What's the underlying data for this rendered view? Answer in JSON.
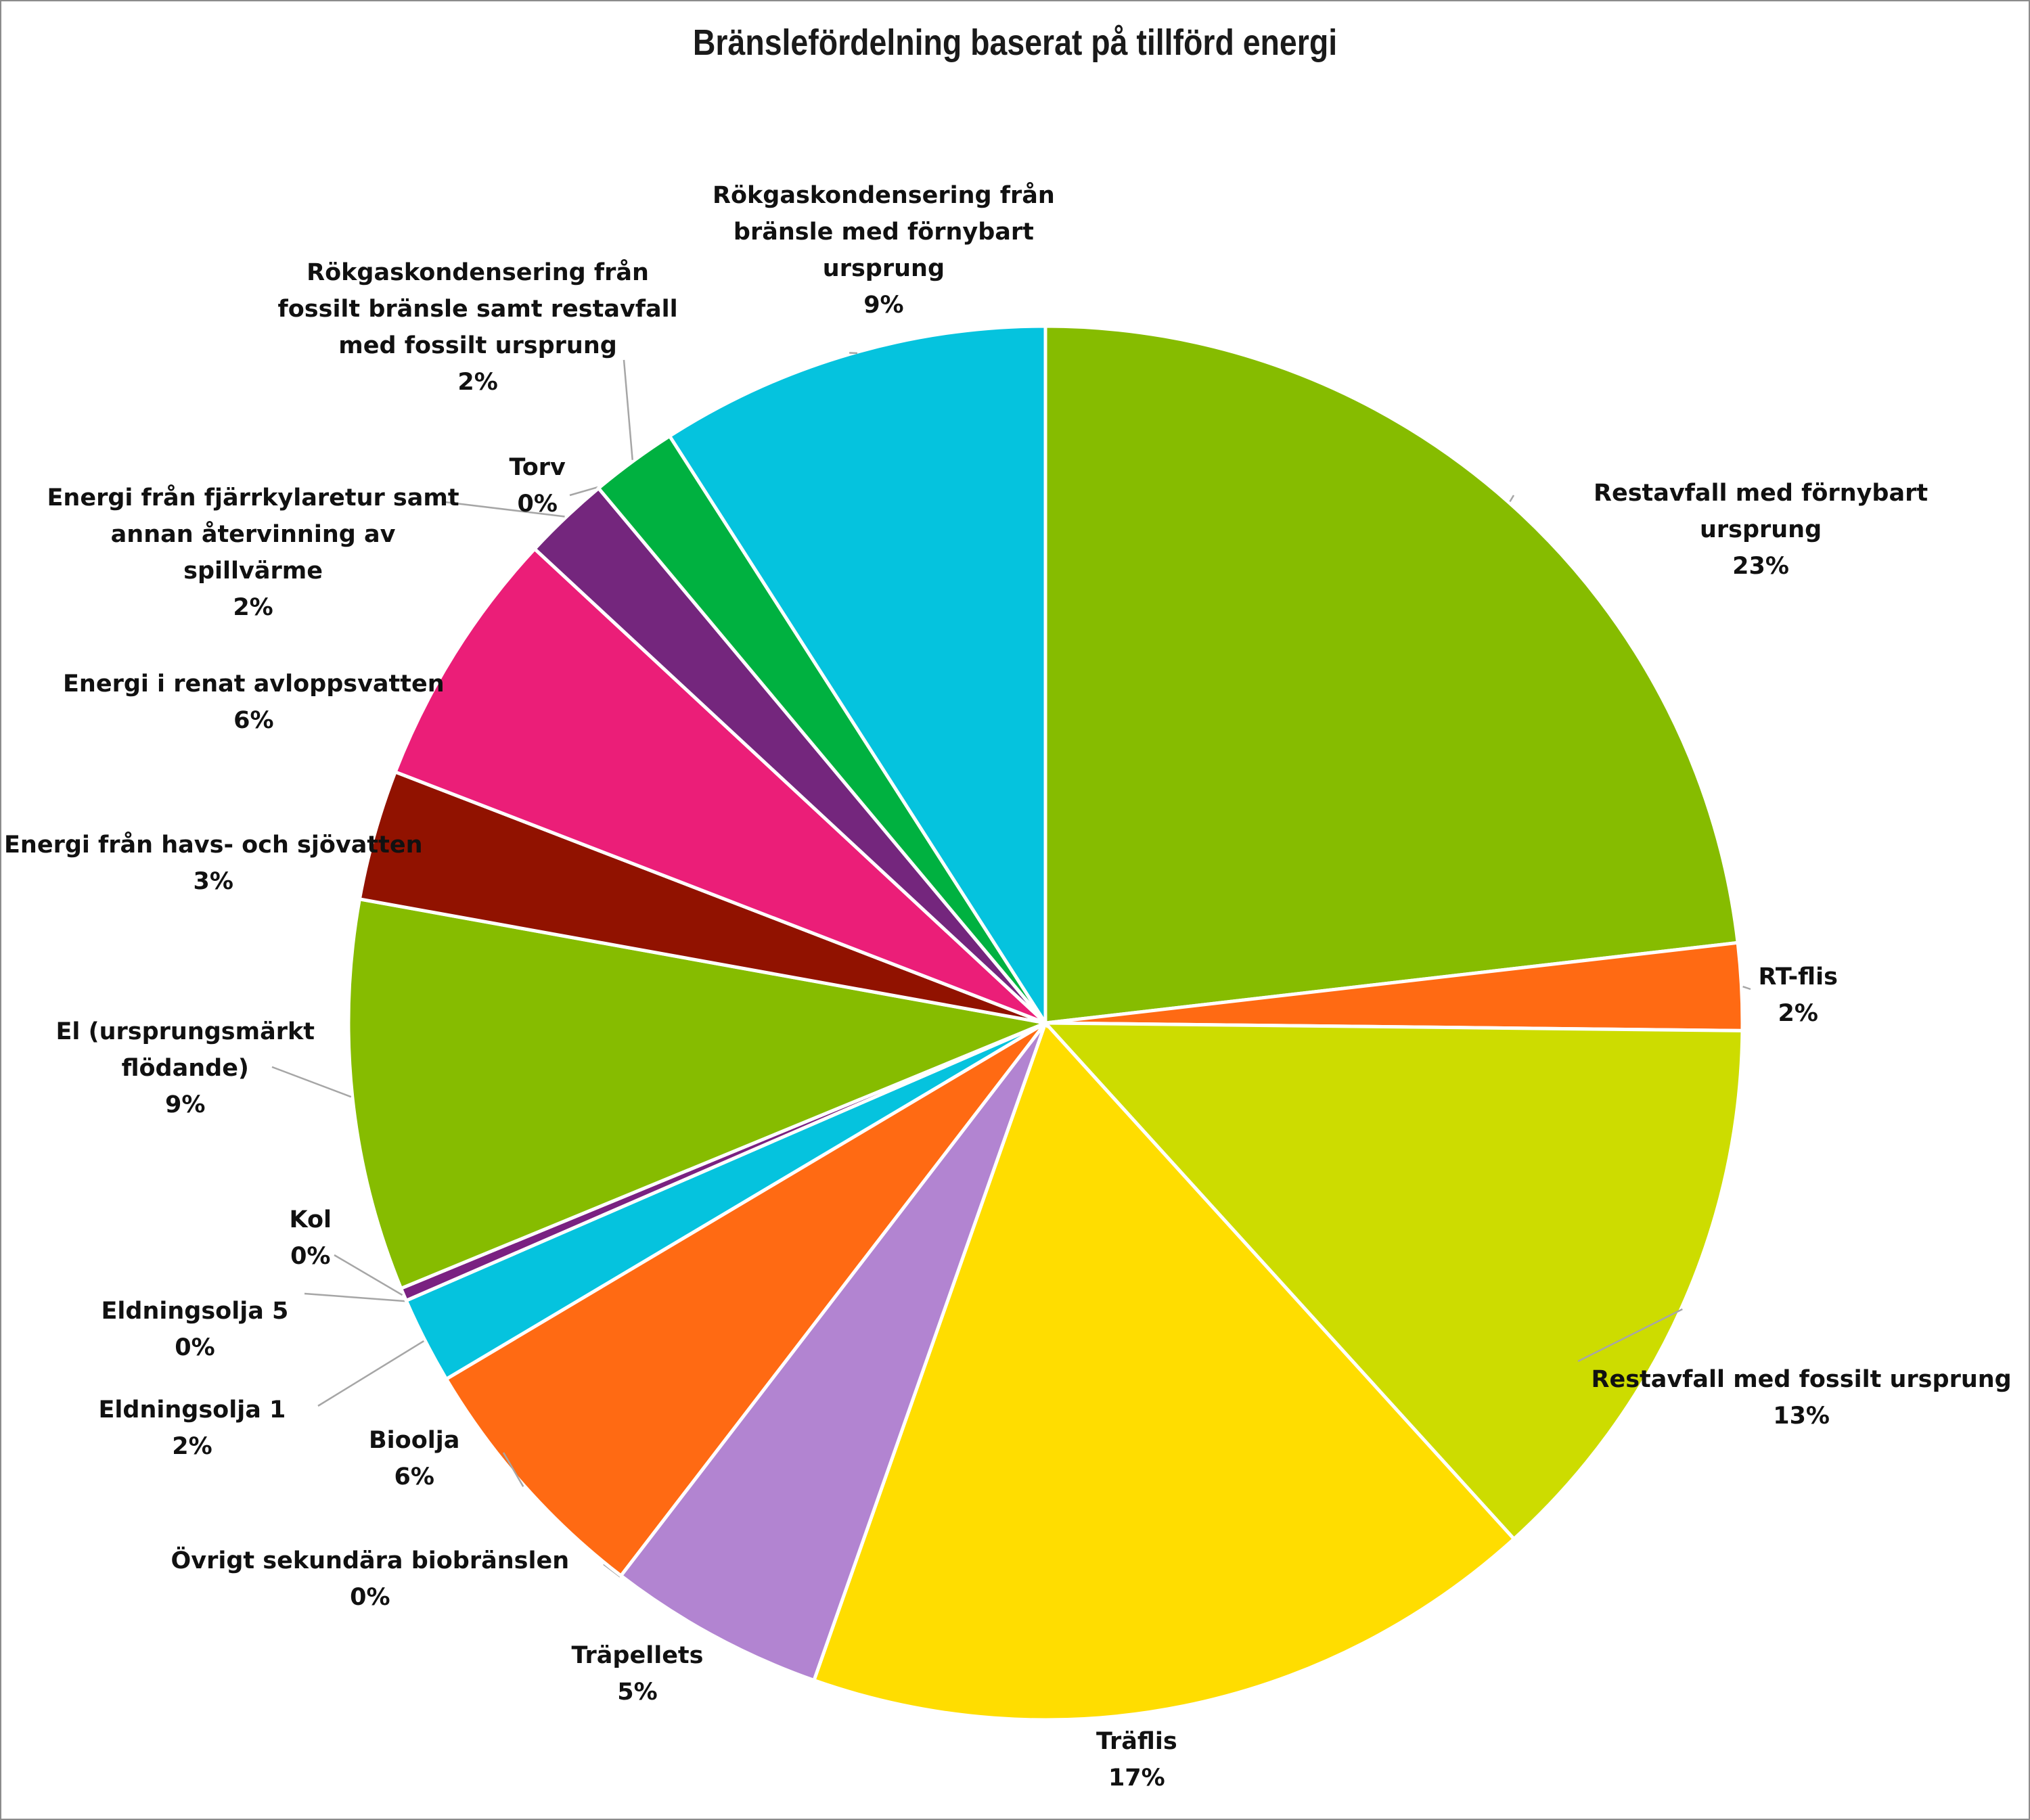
{
  "chart_data": {
    "type": "pie",
    "title": "Bränslefördelning baserat på tillförd energi",
    "start_angle_deg": 0,
    "direction": "clockwise",
    "slices": [
      {
        "label": "Restavfall med förnybart ursprung",
        "value": 23,
        "pct_label": "23%",
        "color": "#86BC00"
      },
      {
        "label": "RT-flis",
        "value": 2,
        "pct_label": "2%",
        "color": "#FF6A13"
      },
      {
        "label": "Restavfall med fossilt ursprung",
        "value": 13,
        "pct_label": "13%",
        "color": "#CDDC00"
      },
      {
        "label": "Träflis",
        "value": 17,
        "pct_label": "17%",
        "color": "#FFDD00"
      },
      {
        "label": "Träpellets",
        "value": 5,
        "pct_label": "5%",
        "color": "#B284D1"
      },
      {
        "label": "Övrigt sekundära biobränslen",
        "value": 0,
        "pct_label": "0%",
        "color": "#FF6A13"
      },
      {
        "label": "Bioolja",
        "value": 6,
        "pct_label": "6%",
        "color": "#FF6A13"
      },
      {
        "label": "Eldningsolja 1",
        "value": 2,
        "pct_label": "2%",
        "color": "#05C3DE"
      },
      {
        "label": "Eldningsolja 5",
        "value": 0,
        "pct_label": "0%",
        "color": "#05C3DE"
      },
      {
        "label": "Kol",
        "value": 0.3,
        "pct_label": "0%",
        "color": "#7A2181"
      },
      {
        "label": "El (ursprungsmärkt flödande)",
        "value": 9,
        "pct_label": "9%",
        "color": "#86BC00"
      },
      {
        "label": "Energi från havs- och sjövatten",
        "value": 3,
        "pct_label": "3%",
        "color": "#911200"
      },
      {
        "label": "Energi i renat avloppsvatten",
        "value": 6,
        "pct_label": "6%",
        "color": "#EB1E78"
      },
      {
        "label": "Energi från fjärrkylaretur samt annan återvinning av spillvärme",
        "value": 2,
        "pct_label": "2%",
        "color": "#74267D"
      },
      {
        "label": "Torv",
        "value": 0,
        "pct_label": "0%",
        "color": "#74267D"
      },
      {
        "label": "Rökgaskondensering från fossilt bränsle samt restavfall med fossilt ursprung",
        "value": 2,
        "pct_label": "2%",
        "color": "#00B140"
      },
      {
        "label": "Rökgaskondensering från bränsle med förnybart ursprung",
        "value": 9,
        "pct_label": "9%",
        "color": "#05C3DE"
      }
    ]
  }
}
